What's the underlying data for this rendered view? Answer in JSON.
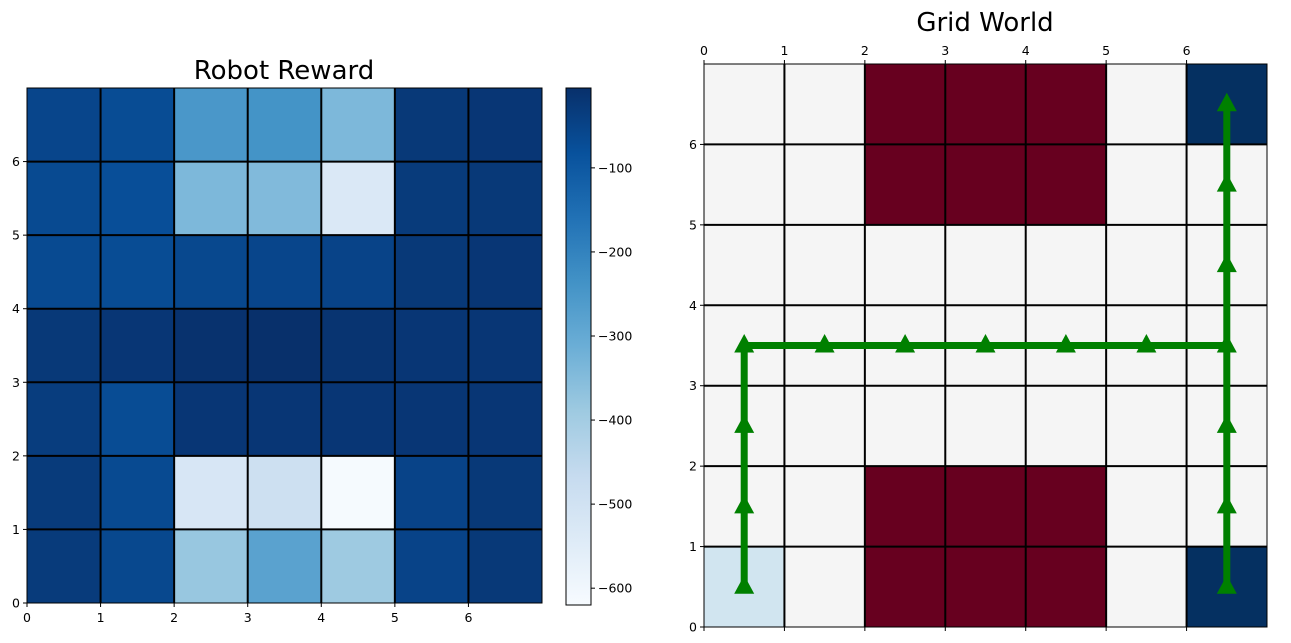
{
  "chart_data": [
    {
      "type": "heatmap",
      "title": "Robot Reward",
      "colormap": "Blues_r",
      "x_ticks": [
        0,
        1,
        2,
        3,
        4,
        5,
        6
      ],
      "y_ticks": [
        0,
        1,
        2,
        3,
        4,
        5,
        6
      ],
      "xlim": [
        0,
        7
      ],
      "ylim": [
        0,
        7
      ],
      "colorbar": {
        "range": [
          -620,
          -5
        ],
        "ticks": [
          -100,
          -200,
          -300,
          -400,
          -500,
          -600
        ],
        "tick_labels": [
          "−100",
          "−200",
          "−300",
          "−400",
          "−500",
          "−600"
        ]
      },
      "rows_top_to_bottom": [
        [
          -55,
          -70,
          -250,
          -240,
          -340,
          -25,
          -20
        ],
        [
          -65,
          -75,
          -340,
          -345,
          -530,
          -30,
          -25
        ],
        [
          -65,
          -70,
          -60,
          -55,
          -50,
          -25,
          -20
        ],
        [
          -25,
          -20,
          -10,
          -5,
          -15,
          -20,
          -20
        ],
        [
          -35,
          -70,
          -20,
          -20,
          -20,
          -20,
          -20
        ],
        [
          -30,
          -65,
          -520,
          -490,
          -615,
          -50,
          -25
        ],
        [
          -30,
          -60,
          -380,
          -280,
          -390,
          -50,
          -25
        ]
      ]
    },
    {
      "type": "heatmap",
      "title": "Grid World",
      "x_ticks": [
        0,
        1,
        2,
        3,
        4,
        5,
        6
      ],
      "y_ticks": [
        0,
        1,
        2,
        3,
        4,
        5,
        6
      ],
      "xlim": [
        0,
        7
      ],
      "ylim": [
        0,
        7
      ],
      "cell_colors": {
        "empty": "#f5f5f5",
        "obstacle": "#67001f",
        "goal": "#053061",
        "start": "#d1e5f0"
      },
      "rows_top_to_bottom": [
        [
          "empty",
          "empty",
          "obstacle",
          "obstacle",
          "obstacle",
          "empty",
          "goal"
        ],
        [
          "empty",
          "empty",
          "obstacle",
          "obstacle",
          "obstacle",
          "empty",
          "empty"
        ],
        [
          "empty",
          "empty",
          "empty",
          "empty",
          "empty",
          "empty",
          "empty"
        ],
        [
          "empty",
          "empty",
          "empty",
          "empty",
          "empty",
          "empty",
          "empty"
        ],
        [
          "empty",
          "empty",
          "empty",
          "empty",
          "empty",
          "empty",
          "empty"
        ],
        [
          "empty",
          "empty",
          "obstacle",
          "obstacle",
          "obstacle",
          "empty",
          "empty"
        ],
        [
          "start",
          "empty",
          "obstacle",
          "obstacle",
          "obstacle",
          "empty",
          "goal"
        ]
      ],
      "path_color": "#008000",
      "path": [
        [
          0.5,
          0.5
        ],
        [
          0.5,
          3.5
        ],
        [
          6.5,
          3.5
        ],
        [
          6.5,
          6.5
        ]
      ],
      "path2": [
        [
          6.5,
          0.5
        ],
        [
          6.5,
          3.5
        ]
      ],
      "markers": [
        [
          0.5,
          0.5
        ],
        [
          0.5,
          1.5
        ],
        [
          0.5,
          2.5
        ],
        [
          0.5,
          3.5
        ],
        [
          1.5,
          3.5
        ],
        [
          2.5,
          3.5
        ],
        [
          3.5,
          3.5
        ],
        [
          4.5,
          3.5
        ],
        [
          5.5,
          3.5
        ],
        [
          6.5,
          3.5
        ],
        [
          6.5,
          4.5
        ],
        [
          6.5,
          5.5
        ],
        [
          6.5,
          6.5
        ],
        [
          6.5,
          0.5
        ],
        [
          6.5,
          1.5
        ],
        [
          6.5,
          2.5
        ]
      ]
    }
  ]
}
